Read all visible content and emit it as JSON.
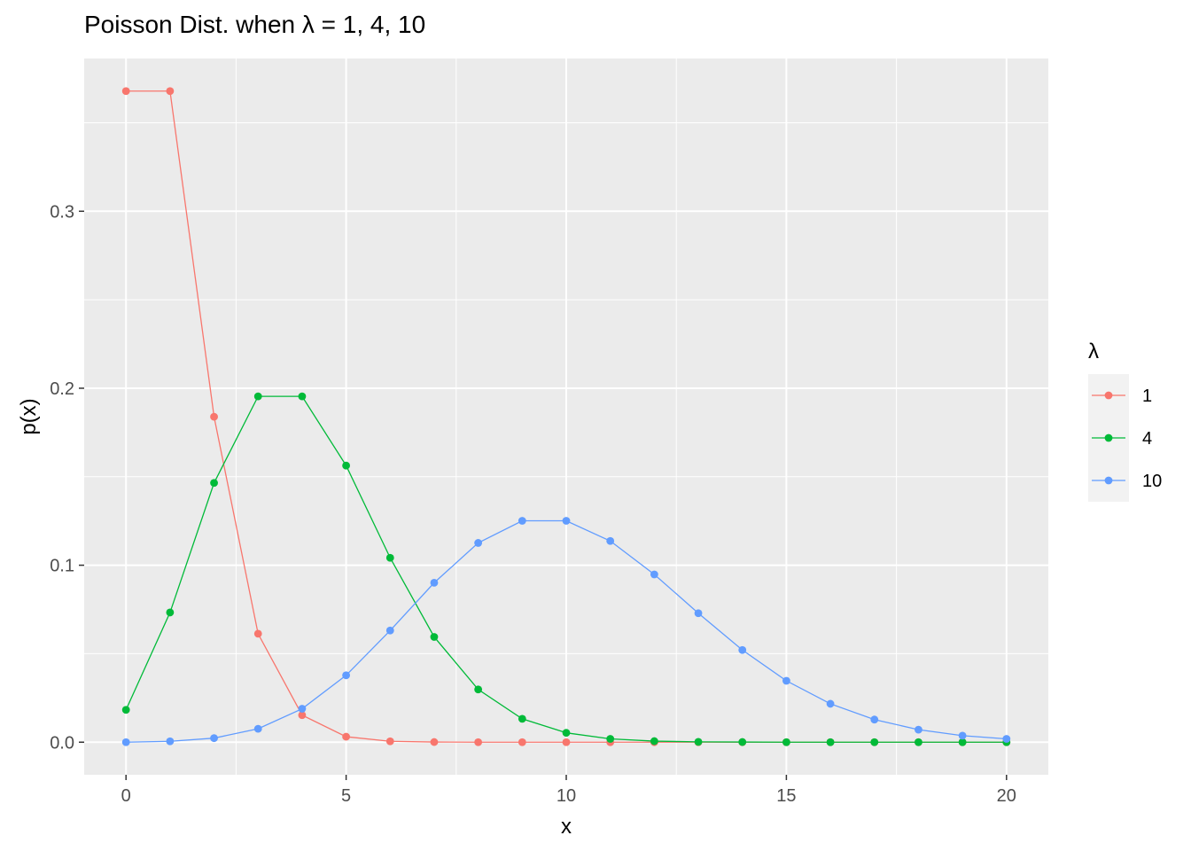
{
  "chart_data": {
    "type": "line",
    "title": "Poisson Dist. when λ = 1, 4, 10",
    "xlabel": "x",
    "ylabel": "p(x)",
    "xlim": [
      -0.95,
      20.95
    ],
    "ylim": [
      -0.0184,
      0.3863
    ],
    "x_ticks": [
      0,
      5,
      10,
      15,
      20
    ],
    "y_ticks": [
      0.0,
      0.1,
      0.2,
      0.3
    ],
    "x_tick_labels": [
      "0",
      "5",
      "10",
      "15",
      "20"
    ],
    "y_tick_labels": [
      "0.0",
      "0.1",
      "0.2",
      "0.3"
    ],
    "grid": true,
    "legend_title": "λ",
    "legend_position": "right",
    "x": [
      0,
      1,
      2,
      3,
      4,
      5,
      6,
      7,
      8,
      9,
      10,
      11,
      12,
      13,
      14,
      15,
      16,
      17,
      18,
      19,
      20
    ],
    "series": [
      {
        "name": "1",
        "color": "#F8766D",
        "values": [
          0.3679,
          0.3679,
          0.1839,
          0.0613,
          0.0153,
          0.0031,
          0.0005,
          0.0001,
          0.0,
          0.0,
          0.0,
          0.0,
          0.0,
          0.0,
          0.0,
          0.0,
          0.0,
          0.0,
          0.0,
          0.0,
          0.0
        ]
      },
      {
        "name": "4",
        "color": "#00BA38",
        "values": [
          0.0183,
          0.0733,
          0.1465,
          0.1954,
          0.1954,
          0.1563,
          0.1042,
          0.0595,
          0.0298,
          0.0132,
          0.0053,
          0.0019,
          0.0006,
          0.0002,
          0.0001,
          0.0,
          0.0,
          0.0,
          0.0,
          0.0,
          0.0
        ]
      },
      {
        "name": "10",
        "color": "#619CFF",
        "values": [
          0.0,
          0.0005,
          0.0023,
          0.0076,
          0.0189,
          0.0378,
          0.0631,
          0.0901,
          0.1126,
          0.1251,
          0.1251,
          0.1137,
          0.0948,
          0.0729,
          0.0521,
          0.0347,
          0.0217,
          0.0128,
          0.0071,
          0.0037,
          0.0019
        ]
      }
    ]
  }
}
